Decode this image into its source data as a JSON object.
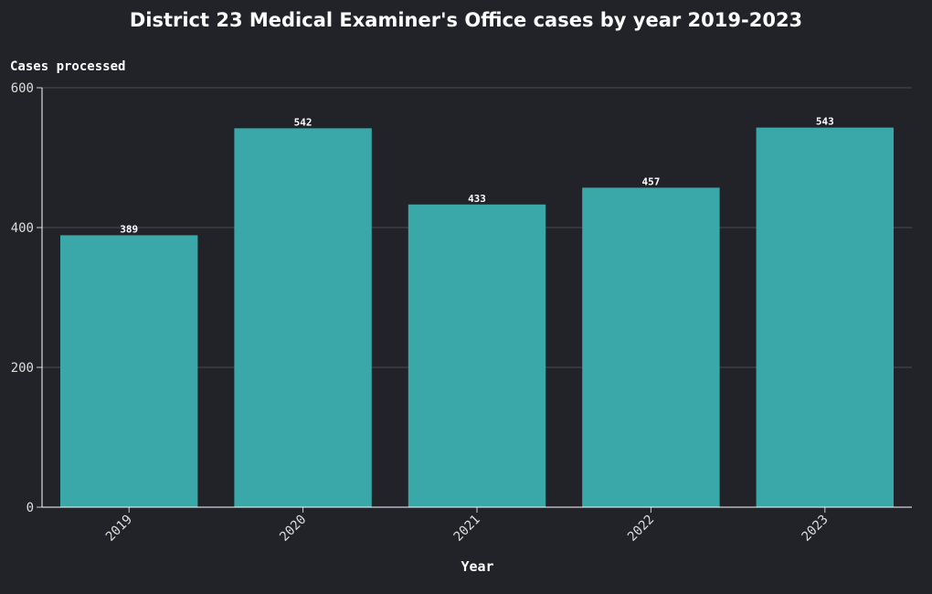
{
  "chart_data": {
    "type": "bar",
    "title": "District 23 Medical Examiner's Office cases by year 2019-2023",
    "xlabel": "Year",
    "ylabel": "Cases processed",
    "categories": [
      "2019",
      "2020",
      "2021",
      "2022",
      "2023"
    ],
    "values": [
      389,
      542,
      433,
      457,
      543
    ],
    "ylim": [
      0,
      600
    ],
    "yticks": [
      0,
      200,
      400,
      600
    ],
    "grid": true,
    "colors": {
      "bar": "#3aa8a8",
      "background": "#222328",
      "grid": "#4a4b50",
      "axis": "#ffffff"
    }
  }
}
